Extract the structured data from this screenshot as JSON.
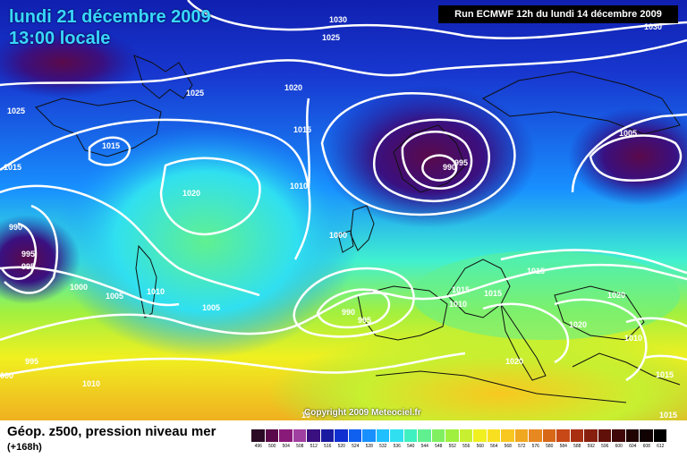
{
  "header": {
    "date_line": "lundi 21 décembre 2009",
    "time_line": "13:00 locale",
    "run_info": "Run ECMWF 12h du lundi 14 décembre 2009"
  },
  "map": {
    "copyright": "Copyright 2009 Meteociel.fr",
    "isobar_labels": [
      {
        "id": "lbl-1030-a",
        "text": "1030"
      },
      {
        "id": "lbl-1030-b",
        "text": "1030"
      },
      {
        "id": "lbl-1025-a",
        "text": "1025"
      },
      {
        "id": "lbl-1025-b",
        "text": "1025"
      },
      {
        "id": "lbl-1025-c",
        "text": "1025"
      },
      {
        "id": "lbl-1020-a",
        "text": "1020"
      },
      {
        "id": "lbl-1020-b",
        "text": "1020"
      },
      {
        "id": "lbl-1020-c",
        "text": "1020"
      },
      {
        "id": "lbl-1020-d",
        "text": "1020"
      },
      {
        "id": "lbl-1020-e",
        "text": "1020"
      },
      {
        "id": "lbl-1015-a",
        "text": "1015"
      },
      {
        "id": "lbl-1015-b",
        "text": "1015"
      },
      {
        "id": "lbl-1015-c",
        "text": "1015"
      },
      {
        "id": "lbl-1015-d",
        "text": "1015"
      },
      {
        "id": "lbl-1015-e",
        "text": "1015"
      },
      {
        "id": "lbl-1015-f",
        "text": "1015"
      },
      {
        "id": "lbl-1015-g",
        "text": "1015"
      },
      {
        "id": "lbl-1015-h",
        "text": "1015"
      },
      {
        "id": "lbl-1010-a",
        "text": "1010"
      },
      {
        "id": "lbl-1010-b",
        "text": "1010"
      },
      {
        "id": "lbl-1010-c",
        "text": "1010"
      },
      {
        "id": "lbl-1010-d",
        "text": "1010"
      },
      {
        "id": "lbl-1010-e",
        "text": "1010"
      },
      {
        "id": "lbl-1005-a",
        "text": "1005"
      },
      {
        "id": "lbl-1005-b",
        "text": "1005"
      },
      {
        "id": "lbl-1005-c",
        "text": "1005"
      },
      {
        "id": "lbl-1000-a",
        "text": "1000"
      },
      {
        "id": "lbl-1000-b",
        "text": "1000"
      },
      {
        "id": "lbl-1000-c",
        "text": "000"
      },
      {
        "id": "lbl-995-a",
        "text": "995"
      },
      {
        "id": "lbl-995-b",
        "text": "995"
      },
      {
        "id": "lbl-995-c",
        "text": "995"
      },
      {
        "id": "lbl-995-d",
        "text": "995"
      },
      {
        "id": "lbl-995-e",
        "text": "995"
      },
      {
        "id": "lbl-990-a",
        "text": "990"
      },
      {
        "id": "lbl-990-b",
        "text": "990"
      },
      {
        "id": "lbl-990-c",
        "text": "990"
      },
      {
        "id": "lbl-10",
        "text": "10"
      }
    ]
  },
  "legend": {
    "title": "Géop. z500, pression niveau mer",
    "subtitle": "(+168h)",
    "scale_colors": [
      "#2a0a24",
      "#5a0a4a",
      "#8a1a7a",
      "#a040a0",
      "#3a1080",
      "#1a1aa0",
      "#1030d0",
      "#1060f0",
      "#1890ff",
      "#20c0ff",
      "#30e0f0",
      "#40f0c0",
      "#60f090",
      "#80f060",
      "#a0f040",
      "#c8f030",
      "#f0f020",
      "#f8e020",
      "#f8c820",
      "#f0a820",
      "#e88820",
      "#d86818",
      "#c84818",
      "#a83010",
      "#882010",
      "#601008",
      "#400808",
      "#200404",
      "#100202",
      "#000000"
    ],
    "scale_ticks": [
      "496",
      "500",
      "504",
      "508",
      "512",
      "516",
      "520",
      "524",
      "528",
      "532",
      "536",
      "540",
      "544",
      "548",
      "552",
      "556",
      "560",
      "564",
      "568",
      "572",
      "576",
      "580",
      "584",
      "588",
      "592",
      "596",
      "600",
      "604",
      "608",
      "612"
    ]
  }
}
